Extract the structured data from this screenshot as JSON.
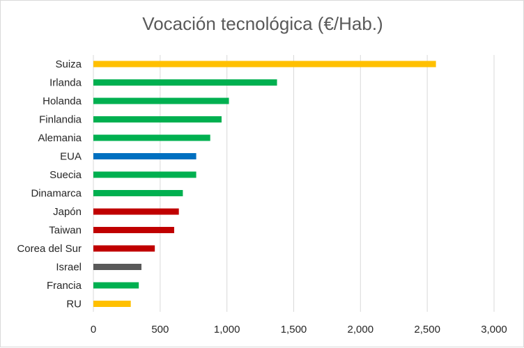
{
  "chart_data": {
    "type": "bar",
    "orientation": "horizontal",
    "title": "Vocación tecnológica (€/Hab.)",
    "xlabel": "",
    "ylabel": "",
    "xlim": [
      0,
      3000
    ],
    "xticks": [
      0,
      500,
      1000,
      1500,
      2000,
      2500,
      3000
    ],
    "xtick_labels": [
      "0",
      "500",
      "1,000",
      "1,500",
      "2,000",
      "2,500",
      "3,000"
    ],
    "grid": true,
    "legend": "none",
    "categories": [
      "Suiza",
      "Irlanda",
      "Holanda",
      "Finlandia",
      "Alemania",
      "EUA",
      "Suecia",
      "Dinamarca",
      "Japón",
      "Taiwan",
      "Corea del Sur",
      "Israel",
      "Francia",
      "RU"
    ],
    "values": [
      2565,
      1375,
      1015,
      960,
      875,
      770,
      770,
      670,
      640,
      605,
      460,
      360,
      340,
      280
    ],
    "colors": [
      "#ffc000",
      "#00b050",
      "#00b050",
      "#00b050",
      "#00b050",
      "#0070c0",
      "#00b050",
      "#00b050",
      "#c00000",
      "#c00000",
      "#c00000",
      "#595959",
      "#00b050",
      "#ffc000"
    ]
  }
}
